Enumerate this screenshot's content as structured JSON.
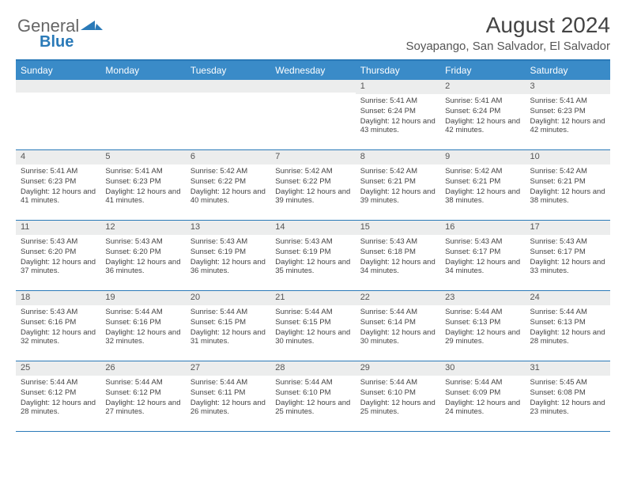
{
  "logo": {
    "text1": "General",
    "text2": "Blue"
  },
  "title": "August 2024",
  "subtitle": "Soyapango, San Salvador, El Salvador",
  "day_headers": [
    "Sunday",
    "Monday",
    "Tuesday",
    "Wednesday",
    "Thursday",
    "Friday",
    "Saturday"
  ],
  "colors": {
    "header_bg": "#3a8bc8",
    "border": "#2a7ab8",
    "daynum_bg": "#eceded"
  },
  "weeks": [
    [
      {
        "n": "",
        "sr": "",
        "ss": "",
        "dl": ""
      },
      {
        "n": "",
        "sr": "",
        "ss": "",
        "dl": ""
      },
      {
        "n": "",
        "sr": "",
        "ss": "",
        "dl": ""
      },
      {
        "n": "",
        "sr": "",
        "ss": "",
        "dl": ""
      },
      {
        "n": "1",
        "sr": "5:41 AM",
        "ss": "6:24 PM",
        "dl": "12 hours and 43 minutes."
      },
      {
        "n": "2",
        "sr": "5:41 AM",
        "ss": "6:24 PM",
        "dl": "12 hours and 42 minutes."
      },
      {
        "n": "3",
        "sr": "5:41 AM",
        "ss": "6:23 PM",
        "dl": "12 hours and 42 minutes."
      }
    ],
    [
      {
        "n": "4",
        "sr": "5:41 AM",
        "ss": "6:23 PM",
        "dl": "12 hours and 41 minutes."
      },
      {
        "n": "5",
        "sr": "5:41 AM",
        "ss": "6:23 PM",
        "dl": "12 hours and 41 minutes."
      },
      {
        "n": "6",
        "sr": "5:42 AM",
        "ss": "6:22 PM",
        "dl": "12 hours and 40 minutes."
      },
      {
        "n": "7",
        "sr": "5:42 AM",
        "ss": "6:22 PM",
        "dl": "12 hours and 39 minutes."
      },
      {
        "n": "8",
        "sr": "5:42 AM",
        "ss": "6:21 PM",
        "dl": "12 hours and 39 minutes."
      },
      {
        "n": "9",
        "sr": "5:42 AM",
        "ss": "6:21 PM",
        "dl": "12 hours and 38 minutes."
      },
      {
        "n": "10",
        "sr": "5:42 AM",
        "ss": "6:21 PM",
        "dl": "12 hours and 38 minutes."
      }
    ],
    [
      {
        "n": "11",
        "sr": "5:43 AM",
        "ss": "6:20 PM",
        "dl": "12 hours and 37 minutes."
      },
      {
        "n": "12",
        "sr": "5:43 AM",
        "ss": "6:20 PM",
        "dl": "12 hours and 36 minutes."
      },
      {
        "n": "13",
        "sr": "5:43 AM",
        "ss": "6:19 PM",
        "dl": "12 hours and 36 minutes."
      },
      {
        "n": "14",
        "sr": "5:43 AM",
        "ss": "6:19 PM",
        "dl": "12 hours and 35 minutes."
      },
      {
        "n": "15",
        "sr": "5:43 AM",
        "ss": "6:18 PM",
        "dl": "12 hours and 34 minutes."
      },
      {
        "n": "16",
        "sr": "5:43 AM",
        "ss": "6:17 PM",
        "dl": "12 hours and 34 minutes."
      },
      {
        "n": "17",
        "sr": "5:43 AM",
        "ss": "6:17 PM",
        "dl": "12 hours and 33 minutes."
      }
    ],
    [
      {
        "n": "18",
        "sr": "5:43 AM",
        "ss": "6:16 PM",
        "dl": "12 hours and 32 minutes."
      },
      {
        "n": "19",
        "sr": "5:44 AM",
        "ss": "6:16 PM",
        "dl": "12 hours and 32 minutes."
      },
      {
        "n": "20",
        "sr": "5:44 AM",
        "ss": "6:15 PM",
        "dl": "12 hours and 31 minutes."
      },
      {
        "n": "21",
        "sr": "5:44 AM",
        "ss": "6:15 PM",
        "dl": "12 hours and 30 minutes."
      },
      {
        "n": "22",
        "sr": "5:44 AM",
        "ss": "6:14 PM",
        "dl": "12 hours and 30 minutes."
      },
      {
        "n": "23",
        "sr": "5:44 AM",
        "ss": "6:13 PM",
        "dl": "12 hours and 29 minutes."
      },
      {
        "n": "24",
        "sr": "5:44 AM",
        "ss": "6:13 PM",
        "dl": "12 hours and 28 minutes."
      }
    ],
    [
      {
        "n": "25",
        "sr": "5:44 AM",
        "ss": "6:12 PM",
        "dl": "12 hours and 28 minutes."
      },
      {
        "n": "26",
        "sr": "5:44 AM",
        "ss": "6:12 PM",
        "dl": "12 hours and 27 minutes."
      },
      {
        "n": "27",
        "sr": "5:44 AM",
        "ss": "6:11 PM",
        "dl": "12 hours and 26 minutes."
      },
      {
        "n": "28",
        "sr": "5:44 AM",
        "ss": "6:10 PM",
        "dl": "12 hours and 25 minutes."
      },
      {
        "n": "29",
        "sr": "5:44 AM",
        "ss": "6:10 PM",
        "dl": "12 hours and 25 minutes."
      },
      {
        "n": "30",
        "sr": "5:44 AM",
        "ss": "6:09 PM",
        "dl": "12 hours and 24 minutes."
      },
      {
        "n": "31",
        "sr": "5:45 AM",
        "ss": "6:08 PM",
        "dl": "12 hours and 23 minutes."
      }
    ]
  ],
  "labels": {
    "sunrise": "Sunrise:",
    "sunset": "Sunset:",
    "daylight": "Daylight:"
  }
}
